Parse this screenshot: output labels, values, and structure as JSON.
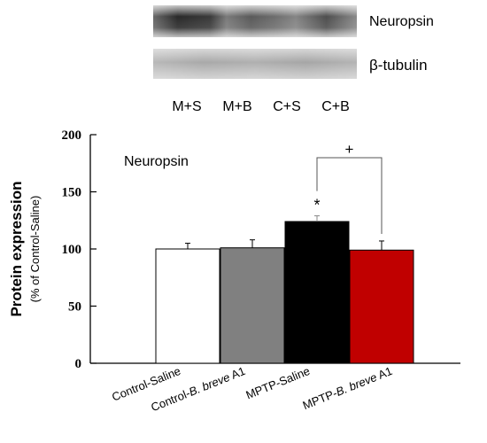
{
  "blot": {
    "bands": [
      {
        "label": "Neuropsin"
      },
      {
        "label": "β-tubulin"
      }
    ],
    "lanes": [
      "M+S",
      "M+B",
      "C+S",
      "C+B"
    ]
  },
  "chart_data": {
    "type": "bar",
    "title": "Neuropsin",
    "ylabel": "Protein expression",
    "ylabel_sub": "(% of Control-Saline)",
    "xlabel": "",
    "ylim": [
      0,
      200
    ],
    "yticks": [
      0,
      50,
      100,
      150,
      200
    ],
    "categories": [
      {
        "pre": "Control-Saline",
        "ital": "",
        "post": ""
      },
      {
        "pre": "Control-",
        "ital": "B. breve",
        "post": " A1"
      },
      {
        "pre": "MPTP-Saline",
        "ital": "",
        "post": ""
      },
      {
        "pre": "MPTP-",
        "ital": "B. breve",
        "post": " A1"
      }
    ],
    "values": [
      100,
      101,
      124,
      99
    ],
    "errors": [
      5,
      7,
      5,
      8
    ],
    "colors": [
      "#ffffff",
      "#808080",
      "#000000",
      "#c00000"
    ],
    "annotations": [
      {
        "type": "marker",
        "text": "*",
        "bar": 2
      },
      {
        "type": "bracket",
        "text": "+",
        "from_bar": 2,
        "to_bar": 3
      }
    ],
    "grid": false
  }
}
